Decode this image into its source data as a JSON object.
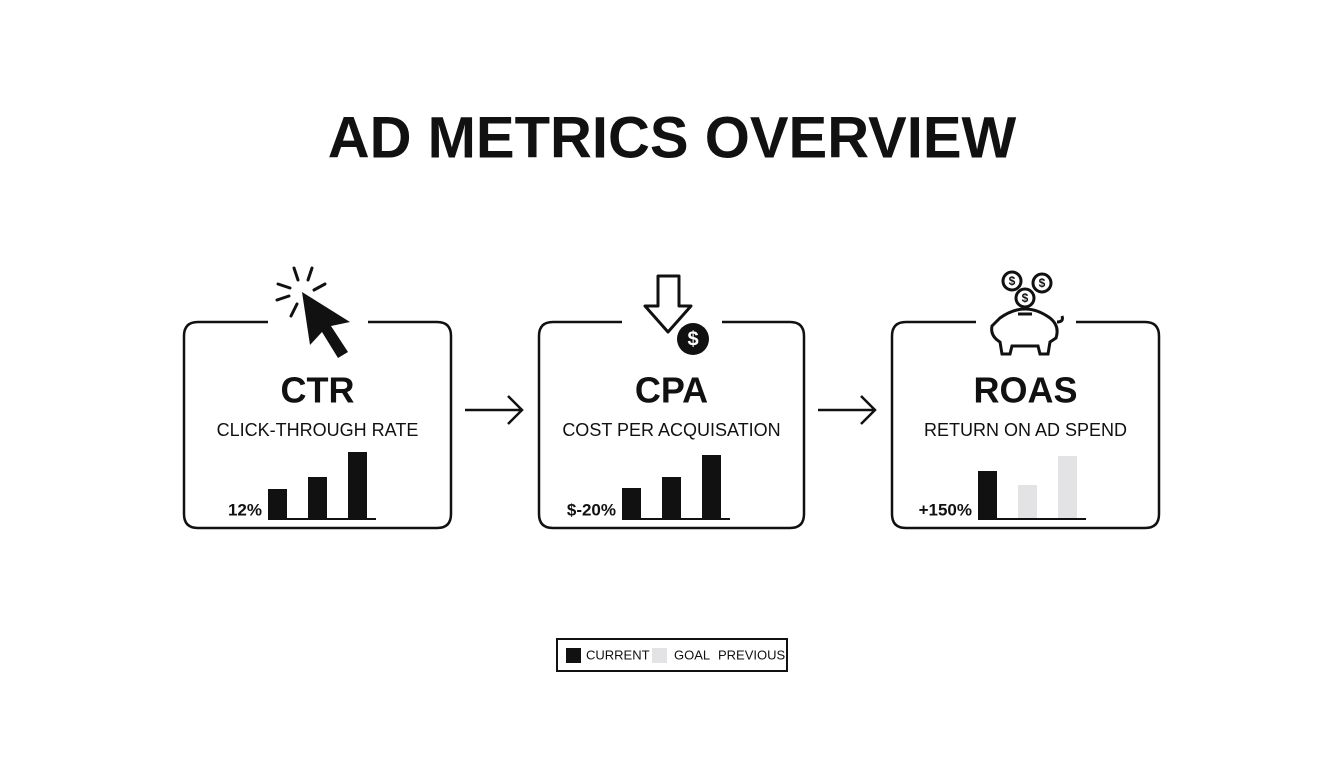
{
  "header": {
    "title": "AD METRICS OVERVIEW"
  },
  "cards": [
    {
      "title": "CTR",
      "subtitle": "CLICK-THROUGH RATE",
      "value": "12%"
    },
    {
      "title": "CPA",
      "subtitle": "COST PER ACQUISATION",
      "value": "$-20%"
    },
    {
      "title": "ROAS",
      "subtitle": "RETURN ON AD SPEND",
      "value": "+150%"
    }
  ],
  "legend": {
    "items": [
      "CURRENT",
      "GOAL",
      "PREVIOUS"
    ]
  }
}
